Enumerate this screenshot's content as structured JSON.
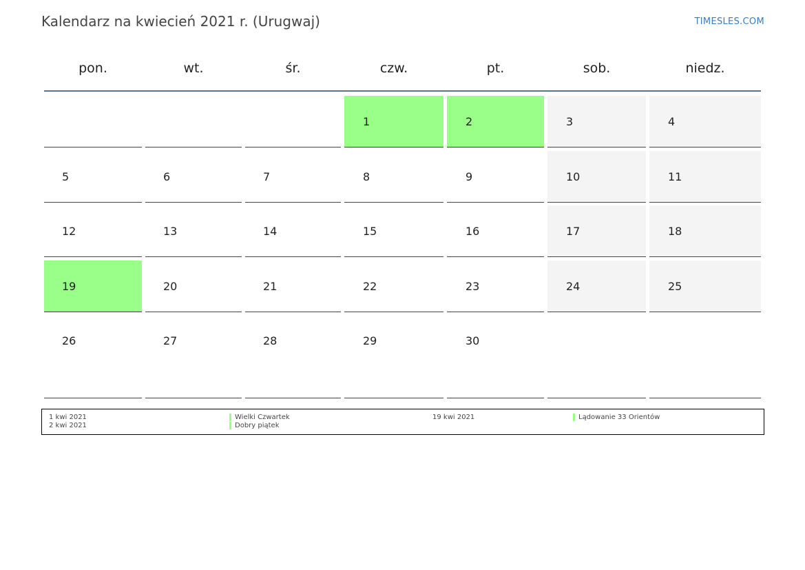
{
  "title": "Kalendarz na kwiecień 2021 r. (Urugwaj)",
  "brand": "TIMESLES.COM",
  "weekdays": [
    "pon.",
    "wt.",
    "śr.",
    "czw.",
    "pt.",
    "sob.",
    "niedz."
  ],
  "colors": {
    "holiday": "#99ff88",
    "weekend": "#f4f4f4",
    "header_rule": "#5b7294",
    "brand": "#3a7bbf"
  },
  "weeks": [
    [
      {
        "day": "",
        "type": "blank"
      },
      {
        "day": "",
        "type": "blank"
      },
      {
        "day": "",
        "type": "blank"
      },
      {
        "day": "1",
        "type": "holiday"
      },
      {
        "day": "2",
        "type": "holiday"
      },
      {
        "day": "3",
        "type": "weekend"
      },
      {
        "day": "4",
        "type": "weekend"
      }
    ],
    [
      {
        "day": "5",
        "type": "normal"
      },
      {
        "day": "6",
        "type": "normal"
      },
      {
        "day": "7",
        "type": "normal"
      },
      {
        "day": "8",
        "type": "normal"
      },
      {
        "day": "9",
        "type": "normal"
      },
      {
        "day": "10",
        "type": "weekend"
      },
      {
        "day": "11",
        "type": "weekend"
      }
    ],
    [
      {
        "day": "12",
        "type": "normal"
      },
      {
        "day": "13",
        "type": "normal"
      },
      {
        "day": "14",
        "type": "normal"
      },
      {
        "day": "15",
        "type": "normal"
      },
      {
        "day": "16",
        "type": "normal"
      },
      {
        "day": "17",
        "type": "weekend"
      },
      {
        "day": "18",
        "type": "weekend"
      }
    ],
    [
      {
        "day": "19",
        "type": "holiday"
      },
      {
        "day": "20",
        "type": "normal"
      },
      {
        "day": "21",
        "type": "normal"
      },
      {
        "day": "22",
        "type": "normal"
      },
      {
        "day": "23",
        "type": "normal"
      },
      {
        "day": "24",
        "type": "weekend"
      },
      {
        "day": "25",
        "type": "weekend"
      }
    ],
    [
      {
        "day": "26",
        "type": "normal"
      },
      {
        "day": "27",
        "type": "normal"
      },
      {
        "day": "28",
        "type": "normal"
      },
      {
        "day": "29",
        "type": "normal"
      },
      {
        "day": "30",
        "type": "normal"
      },
      {
        "day": "",
        "type": "blank"
      },
      {
        "day": "",
        "type": "blank"
      }
    ]
  ],
  "legend": [
    {
      "date": "1 kwi 2021",
      "name": "Wielki Czwartek"
    },
    {
      "date": "2 kwi 2021",
      "name": "Dobry piątek"
    },
    {
      "date": "19 kwi 2021",
      "name": "Lądowanie 33 Orientów"
    }
  ]
}
